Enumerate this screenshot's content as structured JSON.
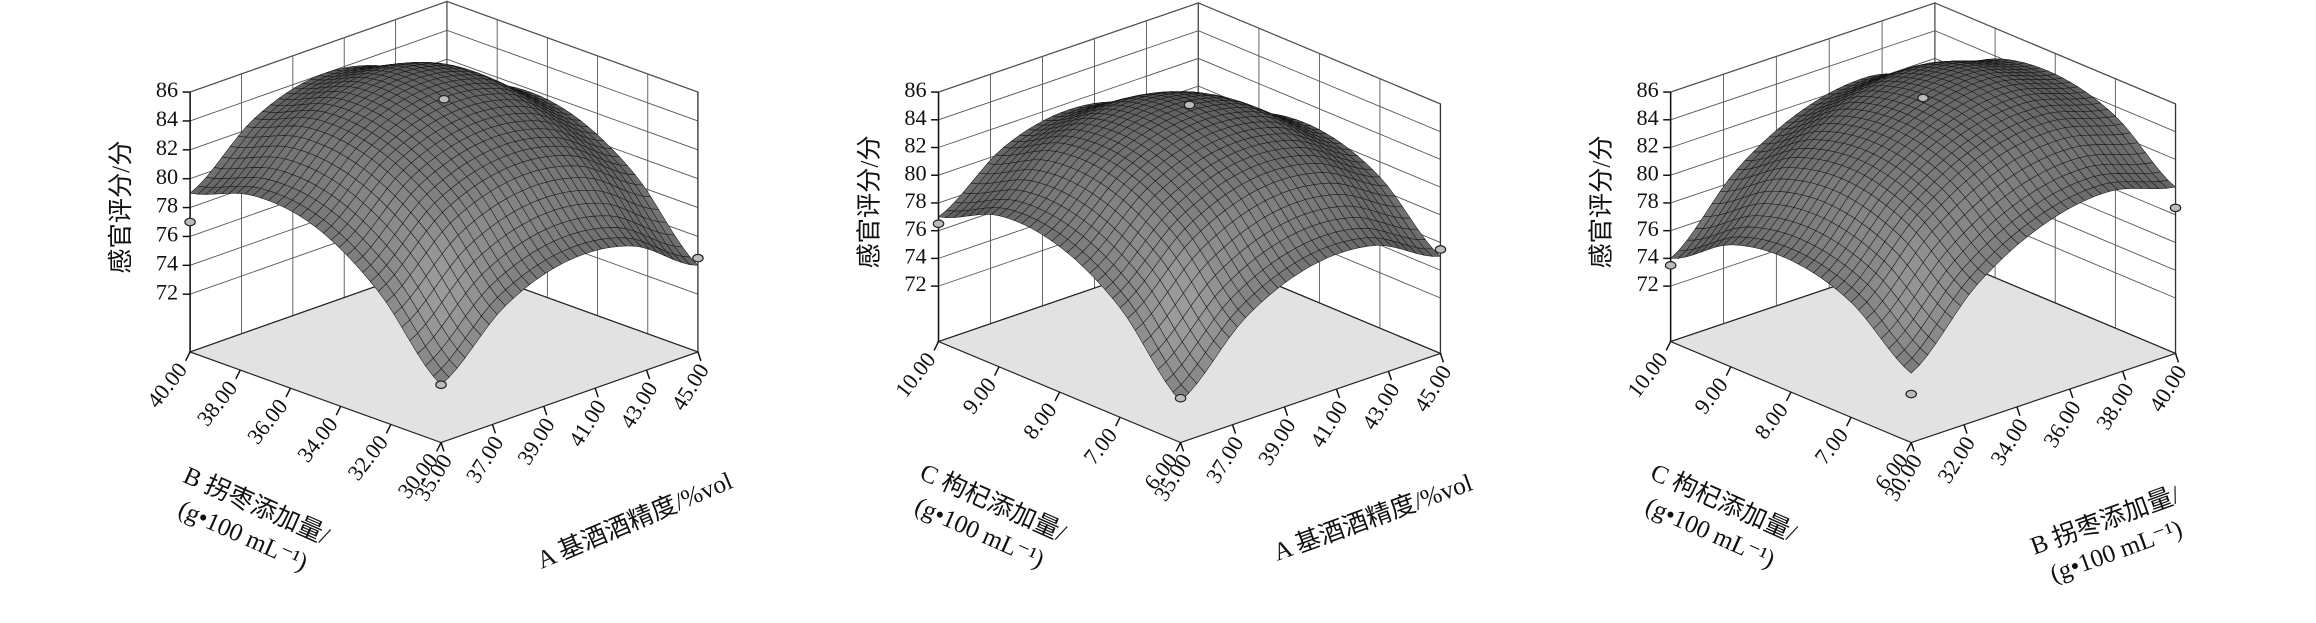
{
  "chart_data": [
    {
      "type": "surface",
      "zlabel": "感官评分/分",
      "xlabel": [
        "A 基酒酒精度/%vol"
      ],
      "ylabel": [
        "B 拐枣添加量/",
        "(g•100 mL⁻¹)"
      ],
      "xlim": [
        35,
        45
      ],
      "ylim": [
        30,
        40
      ],
      "zlim": [
        68,
        86
      ],
      "xticks": [
        {
          "value": 35,
          "label": "35.00"
        },
        {
          "value": 37,
          "label": "37.00"
        },
        {
          "value": 39,
          "label": "39.00"
        },
        {
          "value": 41,
          "label": "41.00"
        },
        {
          "value": 43,
          "label": "43.00"
        },
        {
          "value": 45,
          "label": "45.00"
        }
      ],
      "yticks": [
        {
          "value": 30,
          "label": "30.00"
        },
        {
          "value": 32,
          "label": "32.00"
        },
        {
          "value": 34,
          "label": "34.00"
        },
        {
          "value": 36,
          "label": "36.00"
        },
        {
          "value": 38,
          "label": "38.00"
        },
        {
          "value": 40,
          "label": "40.00"
        }
      ],
      "zticks": [
        72,
        74,
        76,
        78,
        80,
        82,
        84,
        86
      ],
      "x": [
        35,
        37.5,
        40,
        42.5,
        45
      ],
      "y": [
        30,
        32.5,
        35,
        37.5,
        40
      ],
      "z": [
        [
          72.0,
          75.9,
          77.5,
          76.9,
          74.0
        ],
        [
          76.9,
          80.8,
          82.3,
          81.6,
          78.7
        ],
        [
          79.8,
          83.5,
          85.0,
          84.3,
          81.3
        ],
        [
          80.4,
          84.1,
          85.6,
          84.8,
          81.7
        ],
        [
          79.0,
          82.6,
          84.0,
          83.1,
          80.0
        ]
      ],
      "points": {
        "x": [
          35,
          45,
          35,
          40
        ],
        "y": [
          30,
          30,
          40,
          35
        ],
        "z": [
          72,
          74.5,
          77,
          85.5
        ]
      }
    },
    {
      "type": "surface",
      "zlabel": "感官评分/分",
      "xlabel": [
        "A 基酒酒精度/%vol"
      ],
      "ylabel": [
        "C 枸杞添加量/",
        "(g•100 mL⁻¹)"
      ],
      "xlim": [
        35,
        45
      ],
      "ylim": [
        6,
        10
      ],
      "zlim": [
        68,
        86
      ],
      "xticks": [
        {
          "value": 35,
          "label": "35.00"
        },
        {
          "value": 37,
          "label": "37.00"
        },
        {
          "value": 39,
          "label": "39.00"
        },
        {
          "value": 41,
          "label": "41.00"
        },
        {
          "value": 43,
          "label": "43.00"
        },
        {
          "value": 45,
          "label": "45.00"
        }
      ],
      "yticks": [
        {
          "value": 6,
          "label": "6.00"
        },
        {
          "value": 7,
          "label": "7.00"
        },
        {
          "value": 8,
          "label": "8.00"
        },
        {
          "value": 9,
          "label": "9.00"
        },
        {
          "value": 10,
          "label": "10.00"
        }
      ],
      "zticks": [
        72,
        74,
        76,
        78,
        80,
        82,
        84,
        86
      ],
      "x": [
        35,
        37.5,
        40,
        42.5,
        45
      ],
      "y": [
        6,
        7,
        8,
        9,
        10
      ],
      "z": [
        [
          71.0,
          75.4,
          77.5,
          77.4,
          75.0
        ],
        [
          75.9,
          80.0,
          81.9,
          81.5,
          78.9
        ],
        [
          78.5,
          82.4,
          84.0,
          83.4,
          80.5
        ],
        [
          78.9,
          82.5,
          83.9,
          83.0,
          79.9
        ],
        [
          77.0,
          80.4,
          81.5,
          80.4,
          77.0
        ]
      ],
      "points": {
        "x": [
          35,
          35,
          45,
          40
        ],
        "y": [
          6,
          10,
          6,
          8
        ],
        "z": [
          71.2,
          76.5,
          75.5,
          85.5
        ]
      }
    },
    {
      "type": "surface",
      "zlabel": "感官评分/分",
      "xlabel": [
        "B 拐枣添加量/",
        "(g•100 mL⁻¹)"
      ],
      "ylabel": [
        "C 枸杞添加量/",
        "(g•100 mL⁻¹)"
      ],
      "xlim": [
        30,
        40
      ],
      "ylim": [
        6,
        10
      ],
      "zlim": [
        68,
        86
      ],
      "xticks": [
        {
          "value": 30,
          "label": "30.00"
        },
        {
          "value": 32,
          "label": "32.00"
        },
        {
          "value": 34,
          "label": "34.00"
        },
        {
          "value": 36,
          "label": "36.00"
        },
        {
          "value": 38,
          "label": "38.00"
        },
        {
          "value": 40,
          "label": "40.00"
        }
      ],
      "yticks": [
        {
          "value": 6,
          "label": "6.00"
        },
        {
          "value": 7,
          "label": "7.00"
        },
        {
          "value": 8,
          "label": "8.00"
        },
        {
          "value": 9,
          "label": "9.00"
        },
        {
          "value": 10,
          "label": "10.00"
        }
      ],
      "zticks": [
        72,
        74,
        76,
        78,
        80,
        82,
        84,
        86
      ],
      "x": [
        30,
        32.5,
        35,
        37.5,
        40
      ],
      "y": [
        6,
        7,
        8,
        9,
        10
      ],
      "z": [
        [
          73.0,
          77.8,
          80.5,
          81.3,
          80.0
        ],
        [
          76.3,
          81.0,
          83.8,
          84.5,
          83.3
        ],
        [
          77.5,
          82.3,
          85.0,
          85.8,
          84.5
        ],
        [
          76.8,
          81.5,
          84.3,
          85.0,
          83.8
        ],
        [
          74.0,
          78.8,
          81.5,
          82.3,
          81.0
        ]
      ],
      "points": {
        "x": [
          30,
          30,
          40,
          35
        ],
        "y": [
          6,
          10,
          6,
          8
        ],
        "z": [
          71.5,
          73.5,
          78.5,
          86
        ]
      }
    }
  ]
}
